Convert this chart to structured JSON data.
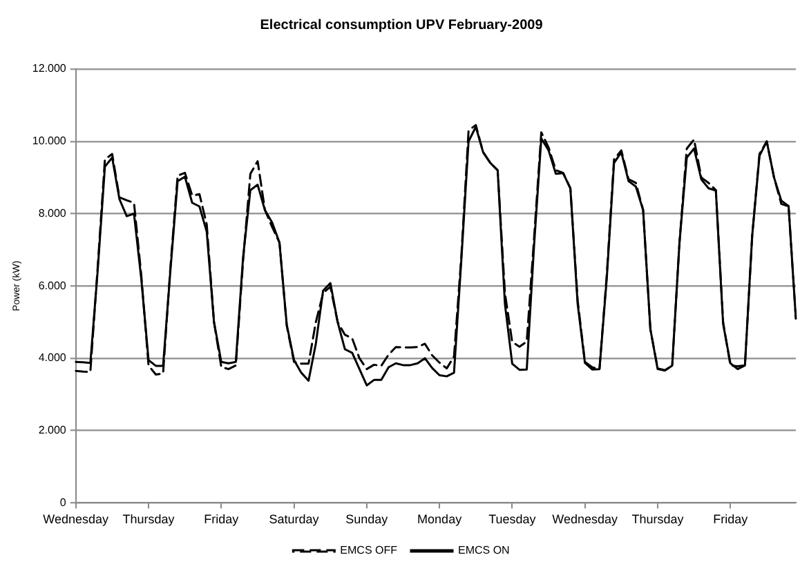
{
  "chart_data": {
    "type": "line",
    "title": "Electrical consumption UPV February-2009",
    "ylabel": "Power (kW)",
    "categories": [
      "Wednesday",
      null,
      null,
      null,
      null,
      null,
      null,
      null,
      null,
      null,
      "Thursday",
      null,
      null,
      null,
      null,
      null,
      null,
      null,
      null,
      null,
      "Friday",
      null,
      null,
      null,
      null,
      null,
      null,
      null,
      null,
      null,
      "Saturday",
      null,
      null,
      null,
      null,
      null,
      null,
      null,
      null,
      null,
      "Sunday",
      null,
      null,
      null,
      null,
      null,
      null,
      null,
      null,
      null,
      "Monday",
      null,
      null,
      null,
      null,
      null,
      null,
      null,
      null,
      null,
      "Tuesday",
      null,
      null,
      null,
      null,
      null,
      null,
      null,
      null,
      null,
      "Wednesday",
      null,
      null,
      null,
      null,
      null,
      null,
      null,
      null,
      null,
      "Thursday",
      null,
      null,
      null,
      null,
      null,
      null,
      null,
      null,
      null,
      "Friday",
      null,
      null,
      null,
      null,
      null,
      null,
      null,
      null,
      null
    ],
    "ylim": [
      0,
      12000
    ],
    "yticks": [
      0,
      {
        "value": 2000,
        "label": "2.000"
      },
      {
        "value": 4000,
        "label": "4.000"
      },
      {
        "value": 6000,
        "label": "6.000"
      },
      {
        "value": 8000,
        "label": "8.000"
      },
      {
        "value": 10000,
        "label": "10.000"
      },
      {
        "value": 12000,
        "label": "12.000"
      }
    ],
    "grid": "y",
    "legend": "bottom",
    "marker": "none",
    "series": [
      {
        "name": "EMCS OFF",
        "color": "#000000",
        "line_style": "dashed",
        "values": [
          3650,
          3630,
          3620,
          6500,
          9500,
          9650,
          8450,
          8370,
          8300,
          6300,
          3800,
          3550,
          3580,
          6500,
          9050,
          9130,
          8500,
          8540,
          7700,
          5000,
          3760,
          3700,
          3800,
          6700,
          9100,
          9450,
          8100,
          7630,
          7200,
          4900,
          3900,
          3850,
          3850,
          5000,
          5800,
          5980,
          5000,
          4650,
          4550,
          4000,
          3700,
          3820,
          3790,
          4100,
          4310,
          4300,
          4300,
          4310,
          4400,
          4080,
          3880,
          3720,
          4050,
          6800,
          10300,
          10450,
          9700,
          9400,
          9200,
          5800,
          4450,
          4320,
          4460,
          7300,
          10250,
          9830,
          9200,
          9130,
          8700,
          5600,
          3900,
          3750,
          3700,
          6300,
          9500,
          9750,
          8950,
          8850,
          8100,
          4800,
          3720,
          3670,
          3800,
          7200,
          9800,
          10050,
          9000,
          8850,
          8650,
          5000,
          3800,
          3780,
          3800,
          7400,
          9650,
          10000,
          9000,
          8270,
          8200,
          5100
        ]
      },
      {
        "name": "EMCS ON",
        "color": "#000000",
        "line_style": "solid",
        "values": [
          3900,
          3890,
          3870,
          6400,
          9300,
          9550,
          8400,
          7930,
          8000,
          6200,
          3950,
          3790,
          3790,
          6410,
          8900,
          9020,
          8300,
          8200,
          7500,
          5000,
          3900,
          3860,
          3900,
          6800,
          8650,
          8800,
          8100,
          7750,
          7200,
          4930,
          3950,
          3600,
          3380,
          4400,
          5870,
          6080,
          5000,
          4250,
          4150,
          3700,
          3250,
          3400,
          3400,
          3750,
          3860,
          3810,
          3810,
          3860,
          4000,
          3730,
          3530,
          3500,
          3600,
          6700,
          10000,
          10400,
          9700,
          9400,
          9200,
          5500,
          3850,
          3680,
          3690,
          7100,
          10080,
          9750,
          9100,
          9120,
          8700,
          5500,
          3870,
          3690,
          3700,
          6200,
          9400,
          9700,
          8900,
          8750,
          8100,
          4800,
          3700,
          3660,
          3800,
          7200,
          9550,
          9800,
          8950,
          8700,
          8640,
          4950,
          3860,
          3700,
          3800,
          7400,
          9600,
          10000,
          9000,
          8360,
          8210,
          5100
        ]
      }
    ]
  }
}
